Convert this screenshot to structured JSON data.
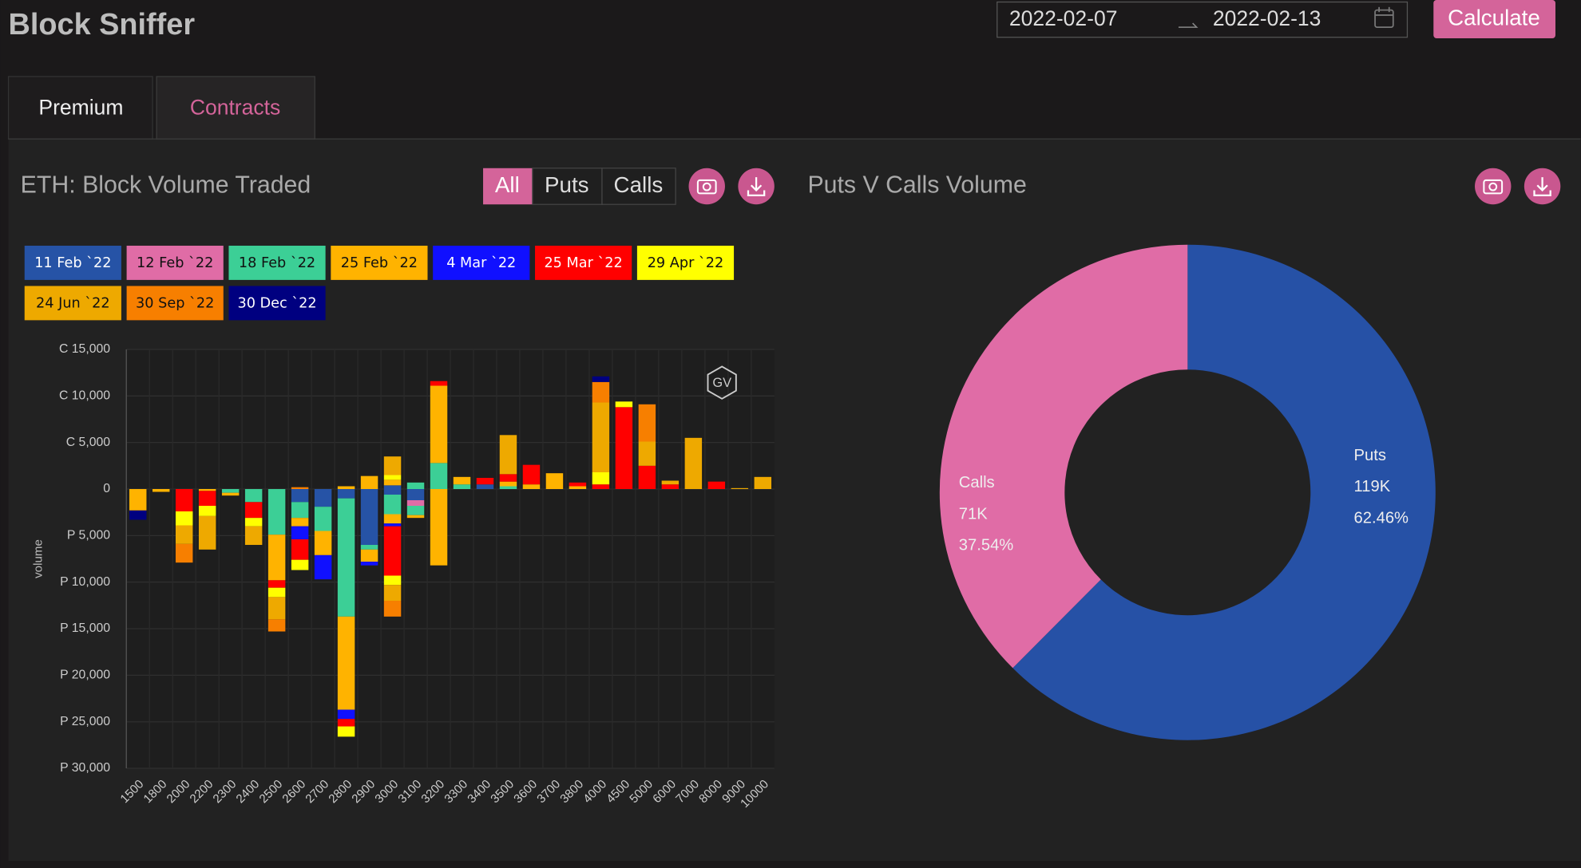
{
  "header": {
    "title": "Block Sniffer",
    "start_date": "2022-02-07",
    "end_date": "2022-02-13",
    "calculate": "Calculate"
  },
  "tabs": [
    "Premium",
    "Contracts"
  ],
  "filters": [
    "All",
    "Puts",
    "Calls"
  ],
  "watermark": "GV",
  "chart_data": [
    {
      "type": "stacked_bar",
      "title": "ETH: Block Volume Traded",
      "ylabel": "volume",
      "grid": true,
      "categories": [
        "1500",
        "1800",
        "2000",
        "2200",
        "2300",
        "2400",
        "2500",
        "2600",
        "2700",
        "2800",
        "2900",
        "3000",
        "3100",
        "3200",
        "3300",
        "3400",
        "3500",
        "3600",
        "3700",
        "3800",
        "4000",
        "4500",
        "5000",
        "6000",
        "7000",
        "8000",
        "9000",
        "10000"
      ],
      "ylim": [
        -30000,
        15000
      ],
      "yticks": [
        {
          "value": 15000,
          "label": "C 15,000"
        },
        {
          "value": 10000,
          "label": "C 10,000"
        },
        {
          "value": 5000,
          "label": "C 5,000"
        },
        0,
        {
          "value": -5000,
          "label": "P 5,000"
        },
        {
          "value": -10000,
          "label": "P 10,000"
        },
        {
          "value": -15000,
          "label": "P 15,000"
        },
        {
          "value": -20000,
          "label": "P 20,000"
        },
        {
          "value": -25000,
          "label": "P 25,000"
        },
        {
          "value": -30000,
          "label": "P 30,000"
        }
      ],
      "series": [
        {
          "name": "11 Feb `22",
          "color": "#2653a6",
          "calls": [
            null,
            null,
            null,
            null,
            null,
            null,
            null,
            null,
            null,
            null,
            null,
            400,
            null,
            null,
            null,
            500,
            null,
            null,
            null,
            null,
            null,
            null,
            null,
            null,
            null,
            null,
            null,
            null
          ],
          "puts": [
            null,
            null,
            null,
            null,
            null,
            null,
            null,
            -1400,
            -1900,
            -1000,
            -6000,
            -600,
            -1200,
            null,
            null,
            null,
            null,
            null,
            null,
            null,
            null,
            null,
            null,
            null,
            null,
            null,
            null,
            null
          ]
        },
        {
          "name": "12 Feb `22",
          "color": "#e06ca6",
          "calls": [
            null,
            null,
            null,
            null,
            null,
            null,
            null,
            null,
            null,
            null,
            null,
            null,
            null,
            null,
            null,
            null,
            null,
            null,
            null,
            null,
            null,
            null,
            null,
            null,
            null,
            null,
            null,
            null
          ],
          "puts": [
            null,
            null,
            null,
            null,
            null,
            null,
            null,
            null,
            null,
            null,
            null,
            null,
            -600,
            null,
            null,
            null,
            null,
            null,
            null,
            null,
            null,
            null,
            null,
            null,
            null,
            null,
            null,
            null
          ]
        },
        {
          "name": "18 Feb `22",
          "color": "#3ccf96",
          "calls": [
            null,
            null,
            null,
            null,
            null,
            null,
            null,
            null,
            null,
            null,
            null,
            null,
            700,
            2800,
            500,
            null,
            300,
            null,
            null,
            null,
            null,
            null,
            null,
            null,
            null,
            null,
            null,
            null
          ],
          "puts": [
            null,
            null,
            null,
            null,
            -400,
            -1400,
            -4900,
            -1700,
            -2600,
            -12700,
            -500,
            -2100,
            -1000,
            null,
            null,
            null,
            null,
            null,
            null,
            null,
            null,
            null,
            null,
            null,
            null,
            null,
            null,
            null
          ]
        },
        {
          "name": "25 Feb `22",
          "color": "#ffb300",
          "calls": [
            null,
            null,
            null,
            null,
            null,
            null,
            null,
            null,
            null,
            300,
            1400,
            600,
            null,
            8300,
            800,
            null,
            500,
            500,
            1700,
            300,
            null,
            null,
            null,
            null,
            null,
            null,
            null,
            null
          ],
          "puts": [
            -2300,
            -300,
            null,
            -200,
            -300,
            null,
            -4900,
            -900,
            -2600,
            -10000,
            -1300,
            -1000,
            -300,
            -8200,
            null,
            null,
            null,
            null,
            null,
            null,
            null,
            null,
            null,
            null,
            null,
            null,
            null,
            null
          ]
        },
        {
          "name": "4 Mar `22",
          "color": "#1010ff",
          "calls": [
            null,
            null,
            null,
            null,
            null,
            null,
            null,
            null,
            null,
            null,
            null,
            null,
            null,
            null,
            null,
            null,
            null,
            null,
            null,
            null,
            null,
            null,
            null,
            null,
            null,
            null,
            null,
            null
          ],
          "puts": [
            null,
            null,
            null,
            null,
            null,
            null,
            null,
            -1400,
            -2600,
            -1000,
            -400,
            -300,
            null,
            null,
            null,
            null,
            null,
            null,
            null,
            null,
            null,
            null,
            null,
            null,
            null,
            null,
            null,
            null
          ]
        },
        {
          "name": "25 Mar `22",
          "color": "#ff0000",
          "calls": [
            null,
            null,
            null,
            null,
            null,
            null,
            null,
            null,
            null,
            null,
            null,
            null,
            null,
            500,
            null,
            700,
            800,
            2100,
            null,
            400,
            500,
            8800,
            2500,
            500,
            null,
            800,
            null,
            null
          ],
          "puts": [
            null,
            null,
            -2400,
            -1600,
            null,
            -1700,
            -800,
            -2200,
            null,
            -800,
            null,
            -5300,
            null,
            null,
            null,
            null,
            null,
            null,
            null,
            null,
            null,
            null,
            null,
            null,
            null,
            null,
            null,
            null
          ]
        },
        {
          "name": "29 Apr `22",
          "color": "#ffff00",
          "calls": [
            null,
            null,
            null,
            null,
            null,
            null,
            null,
            null,
            null,
            null,
            null,
            500,
            null,
            null,
            null,
            null,
            null,
            null,
            null,
            null,
            1300,
            600,
            null,
            null,
            null,
            null,
            null,
            null
          ],
          "puts": [
            null,
            null,
            -1500,
            -1100,
            null,
            -900,
            -1000,
            -1100,
            null,
            -1100,
            null,
            -1000,
            null,
            null,
            null,
            null,
            null,
            null,
            null,
            null,
            null,
            null,
            null,
            null,
            null,
            null,
            null,
            null
          ]
        },
        {
          "name": "24 Jun `22",
          "color": "#eea900",
          "calls": [
            null,
            null,
            null,
            null,
            null,
            null,
            null,
            null,
            null,
            null,
            null,
            2000,
            null,
            null,
            null,
            null,
            4200,
            null,
            null,
            null,
            7500,
            null,
            2600,
            400,
            5500,
            null,
            100,
            1300
          ],
          "puts": [
            null,
            null,
            -2000,
            -3600,
            null,
            -2000,
            -2400,
            null,
            null,
            null,
            null,
            -1700,
            null,
            null,
            null,
            null,
            null,
            null,
            null,
            null,
            null,
            null,
            null,
            null,
            null,
            null,
            null,
            null
          ]
        },
        {
          "name": "30 Sep `22",
          "color": "#f77f00",
          "calls": [
            null,
            null,
            null,
            null,
            null,
            null,
            null,
            200,
            null,
            null,
            null,
            null,
            null,
            null,
            null,
            null,
            null,
            null,
            null,
            null,
            2200,
            null,
            4000,
            null,
            null,
            null,
            null,
            null
          ],
          "puts": [
            null,
            null,
            -2000,
            null,
            null,
            null,
            -1300,
            null,
            null,
            null,
            null,
            -1700,
            null,
            null,
            null,
            null,
            null,
            null,
            null,
            null,
            null,
            null,
            null,
            null,
            null,
            null,
            null,
            null
          ]
        },
        {
          "name": "30 Dec `22",
          "color": "#000080",
          "calls": [
            null,
            null,
            null,
            null,
            null,
            null,
            null,
            null,
            null,
            null,
            null,
            null,
            null,
            null,
            null,
            null,
            null,
            null,
            null,
            null,
            600,
            null,
            null,
            null,
            null,
            null,
            null,
            null
          ],
          "puts": [
            -1000,
            null,
            null,
            null,
            null,
            null,
            null,
            null,
            null,
            null,
            null,
            null,
            null,
            null,
            null,
            null,
            null,
            null,
            null,
            null,
            null,
            null,
            null,
            null,
            null,
            null,
            null,
            null
          ]
        }
      ]
    },
    {
      "type": "donut",
      "title": "Puts V Calls Volume",
      "categories": [
        "Puts",
        "Calls"
      ],
      "colors": [
        "#2651a6",
        "#e06ca6"
      ],
      "values": [
        119000,
        71000
      ],
      "value_labels": [
        "119K",
        "71K"
      ],
      "percentages": [
        62.46,
        37.54
      ],
      "percentage_labels": [
        "62.46%",
        "37.54%"
      ]
    }
  ]
}
